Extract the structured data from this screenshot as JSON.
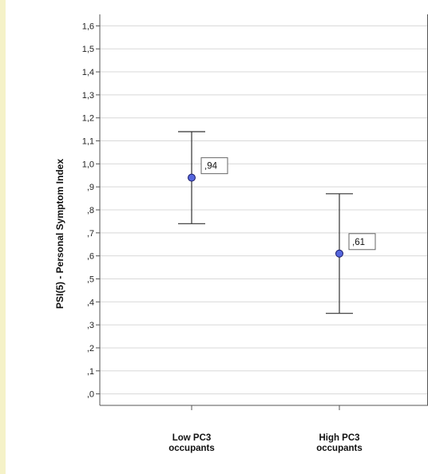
{
  "chart_data": {
    "type": "errorbar",
    "title": "",
    "xlabel": "",
    "ylabel": "PSI(5) - Personal Symptom Index",
    "ylim": [
      -0.05,
      1.65
    ],
    "yticks": [
      0,
      0.1,
      0.2,
      0.3,
      0.4,
      0.5,
      0.6,
      0.7,
      0.8,
      0.9,
      1.0,
      1.1,
      1.2,
      1.3,
      1.4,
      1.5,
      1.6
    ],
    "ytick_labels": [
      ",0",
      ",1",
      ",2",
      ",3",
      ",4",
      ",5",
      ",6",
      ",7",
      ",8",
      ",9",
      "1,0",
      "1,1",
      "1,2",
      "1,3",
      "1,4",
      "1,5",
      "1,6"
    ],
    "grid": true,
    "categories": [
      {
        "line1": "Low PC3",
        "line2": "occupants"
      },
      {
        "line1": "High PC3",
        "line2": "occupants"
      }
    ],
    "series": [
      {
        "values": [
          0.94,
          0.61
        ],
        "lower": [
          0.74,
          0.35
        ],
        "upper": [
          1.14,
          0.87
        ],
        "labels": [
          ",94",
          ",61"
        ]
      }
    ],
    "colors": {
      "marker": "#5566dd",
      "marker_edge": "#1a1a66",
      "grid": "#d8d8d8",
      "axis": "#555555"
    }
  }
}
